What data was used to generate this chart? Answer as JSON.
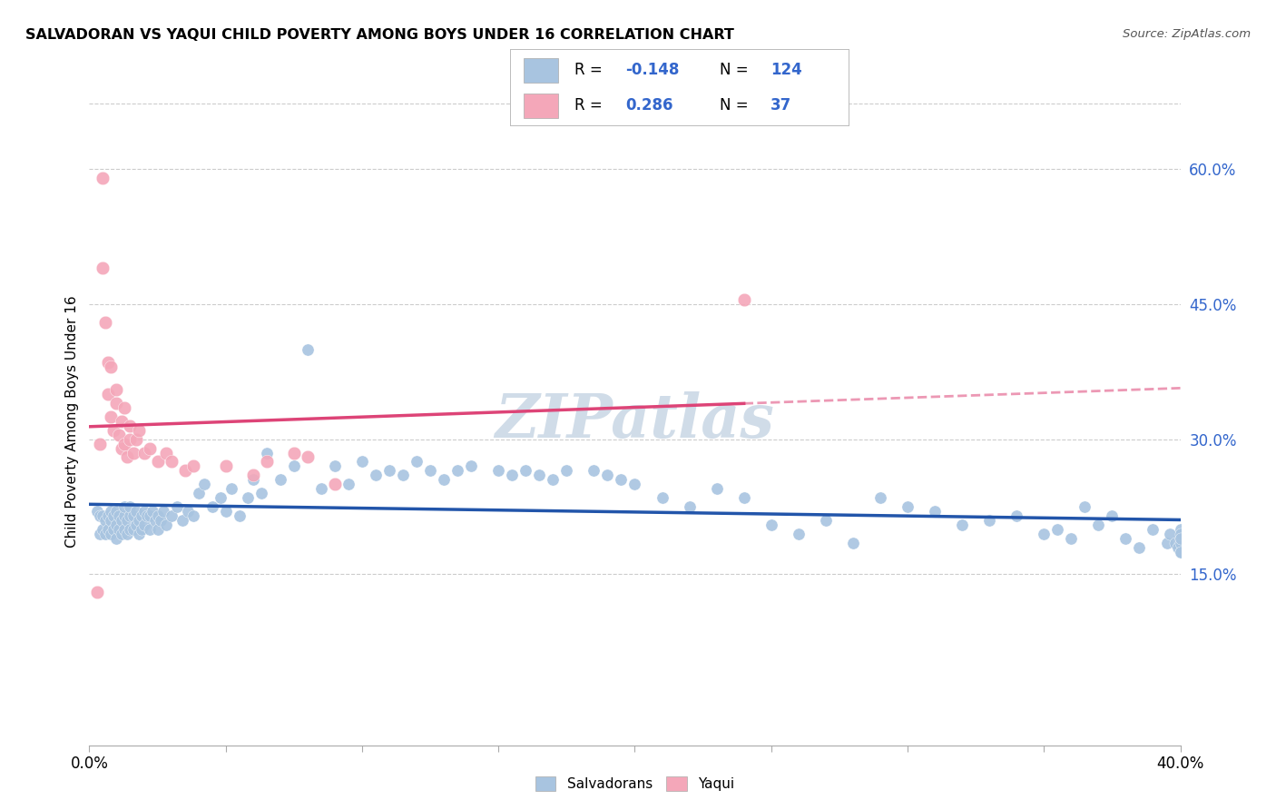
{
  "title": "SALVADORAN VS YAQUI CHILD POVERTY AMONG BOYS UNDER 16 CORRELATION CHART",
  "source": "Source: ZipAtlas.com",
  "ylabel": "Child Poverty Among Boys Under 16",
  "xlim": [
    0.0,
    0.4
  ],
  "ylim": [
    -0.04,
    0.68
  ],
  "xticks": [
    0.0,
    0.05,
    0.1,
    0.15,
    0.2,
    0.25,
    0.3,
    0.35,
    0.4
  ],
  "xticklabels": [
    "0.0%",
    "",
    "",
    "",
    "",
    "",
    "",
    "",
    "40.0%"
  ],
  "yticks_right": [
    0.15,
    0.3,
    0.45,
    0.6
  ],
  "ytick_labels_right": [
    "15.0%",
    "30.0%",
    "45.0%",
    "60.0%"
  ],
  "salvadoran_color": "#a8c4e0",
  "salvadoran_line_color": "#2255aa",
  "yaqui_color": "#f4a7b9",
  "yaqui_line_color": "#dd4477",
  "watermark_color": "#d0dce8",
  "salvadoran_x": [
    0.003,
    0.004,
    0.004,
    0.005,
    0.005,
    0.006,
    0.006,
    0.007,
    0.007,
    0.008,
    0.008,
    0.008,
    0.009,
    0.009,
    0.01,
    0.01,
    0.01,
    0.011,
    0.011,
    0.012,
    0.012,
    0.013,
    0.013,
    0.013,
    0.014,
    0.014,
    0.015,
    0.015,
    0.015,
    0.016,
    0.016,
    0.017,
    0.017,
    0.018,
    0.018,
    0.019,
    0.019,
    0.02,
    0.02,
    0.021,
    0.022,
    0.022,
    0.023,
    0.024,
    0.025,
    0.025,
    0.026,
    0.027,
    0.028,
    0.03,
    0.032,
    0.034,
    0.036,
    0.038,
    0.04,
    0.042,
    0.045,
    0.048,
    0.05,
    0.052,
    0.055,
    0.058,
    0.06,
    0.063,
    0.065,
    0.07,
    0.075,
    0.08,
    0.085,
    0.09,
    0.095,
    0.1,
    0.105,
    0.11,
    0.115,
    0.12,
    0.125,
    0.13,
    0.135,
    0.14,
    0.15,
    0.155,
    0.16,
    0.165,
    0.17,
    0.175,
    0.185,
    0.19,
    0.195,
    0.2,
    0.21,
    0.22,
    0.23,
    0.24,
    0.25,
    0.26,
    0.27,
    0.28,
    0.29,
    0.3,
    0.31,
    0.32,
    0.33,
    0.34,
    0.35,
    0.355,
    0.36,
    0.365,
    0.37,
    0.375,
    0.38,
    0.385,
    0.39,
    0.395,
    0.396,
    0.398,
    0.399,
    0.4,
    0.4,
    0.4,
    0.4,
    0.4,
    0.4,
    0.4
  ],
  "salvadoran_y": [
    0.22,
    0.195,
    0.215,
    0.2,
    0.215,
    0.195,
    0.21,
    0.215,
    0.2,
    0.195,
    0.21,
    0.22,
    0.2,
    0.215,
    0.19,
    0.205,
    0.22,
    0.2,
    0.215,
    0.195,
    0.21,
    0.2,
    0.215,
    0.225,
    0.195,
    0.21,
    0.2,
    0.215,
    0.225,
    0.2,
    0.215,
    0.205,
    0.22,
    0.195,
    0.21,
    0.2,
    0.215,
    0.205,
    0.22,
    0.215,
    0.2,
    0.215,
    0.22,
    0.21,
    0.2,
    0.215,
    0.21,
    0.22,
    0.205,
    0.215,
    0.225,
    0.21,
    0.22,
    0.215,
    0.24,
    0.25,
    0.225,
    0.235,
    0.22,
    0.245,
    0.215,
    0.235,
    0.255,
    0.24,
    0.285,
    0.255,
    0.27,
    0.4,
    0.245,
    0.27,
    0.25,
    0.275,
    0.26,
    0.265,
    0.26,
    0.275,
    0.265,
    0.255,
    0.265,
    0.27,
    0.265,
    0.26,
    0.265,
    0.26,
    0.255,
    0.265,
    0.265,
    0.26,
    0.255,
    0.25,
    0.235,
    0.225,
    0.245,
    0.235,
    0.205,
    0.195,
    0.21,
    0.185,
    0.235,
    0.225,
    0.22,
    0.205,
    0.21,
    0.215,
    0.195,
    0.2,
    0.19,
    0.225,
    0.205,
    0.215,
    0.19,
    0.18,
    0.2,
    0.185,
    0.195,
    0.185,
    0.18,
    0.2,
    0.175,
    0.19,
    0.185,
    0.195,
    0.175,
    0.19
  ],
  "yaqui_x": [
    0.003,
    0.004,
    0.005,
    0.005,
    0.006,
    0.007,
    0.007,
    0.008,
    0.008,
    0.009,
    0.01,
    0.01,
    0.011,
    0.012,
    0.012,
    0.013,
    0.013,
    0.014,
    0.015,
    0.015,
    0.016,
    0.017,
    0.018,
    0.02,
    0.022,
    0.025,
    0.028,
    0.03,
    0.035,
    0.038,
    0.05,
    0.06,
    0.065,
    0.075,
    0.08,
    0.09,
    0.24
  ],
  "yaqui_y": [
    0.13,
    0.295,
    0.59,
    0.49,
    0.43,
    0.385,
    0.35,
    0.325,
    0.38,
    0.31,
    0.34,
    0.355,
    0.305,
    0.29,
    0.32,
    0.295,
    0.335,
    0.28,
    0.3,
    0.315,
    0.285,
    0.3,
    0.31,
    0.285,
    0.29,
    0.275,
    0.285,
    0.275,
    0.265,
    0.27,
    0.27,
    0.26,
    0.275,
    0.285,
    0.28,
    0.25,
    0.455
  ],
  "fig_bg_color": "#ffffff"
}
